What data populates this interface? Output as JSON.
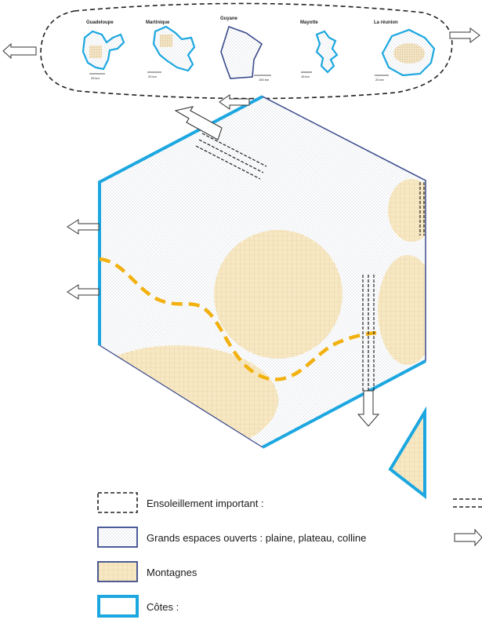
{
  "territories": [
    {
      "name": "Guadeloupe",
      "scale": "25 km"
    },
    {
      "name": "Martinique",
      "scale": "20 km"
    },
    {
      "name": "Guyane",
      "scale": "150 km"
    },
    {
      "name": "Mayotte",
      "scale": "15 km"
    },
    {
      "name": "La réunion",
      "scale": "20 km"
    }
  ],
  "legend": {
    "items": [
      {
        "label": "Ensoleillement important :"
      },
      {
        "label": "Grands espaces ouverts : plaine, plateau, colline"
      },
      {
        "label": "Montagnes"
      },
      {
        "label": "Côtes :"
      }
    ]
  },
  "colors": {
    "coast": "#1ca7e0",
    "outline": "#3a4a8c",
    "mountain": "#f7e8c4",
    "path": "#f2b10f",
    "dots": "#9aa4b8"
  }
}
